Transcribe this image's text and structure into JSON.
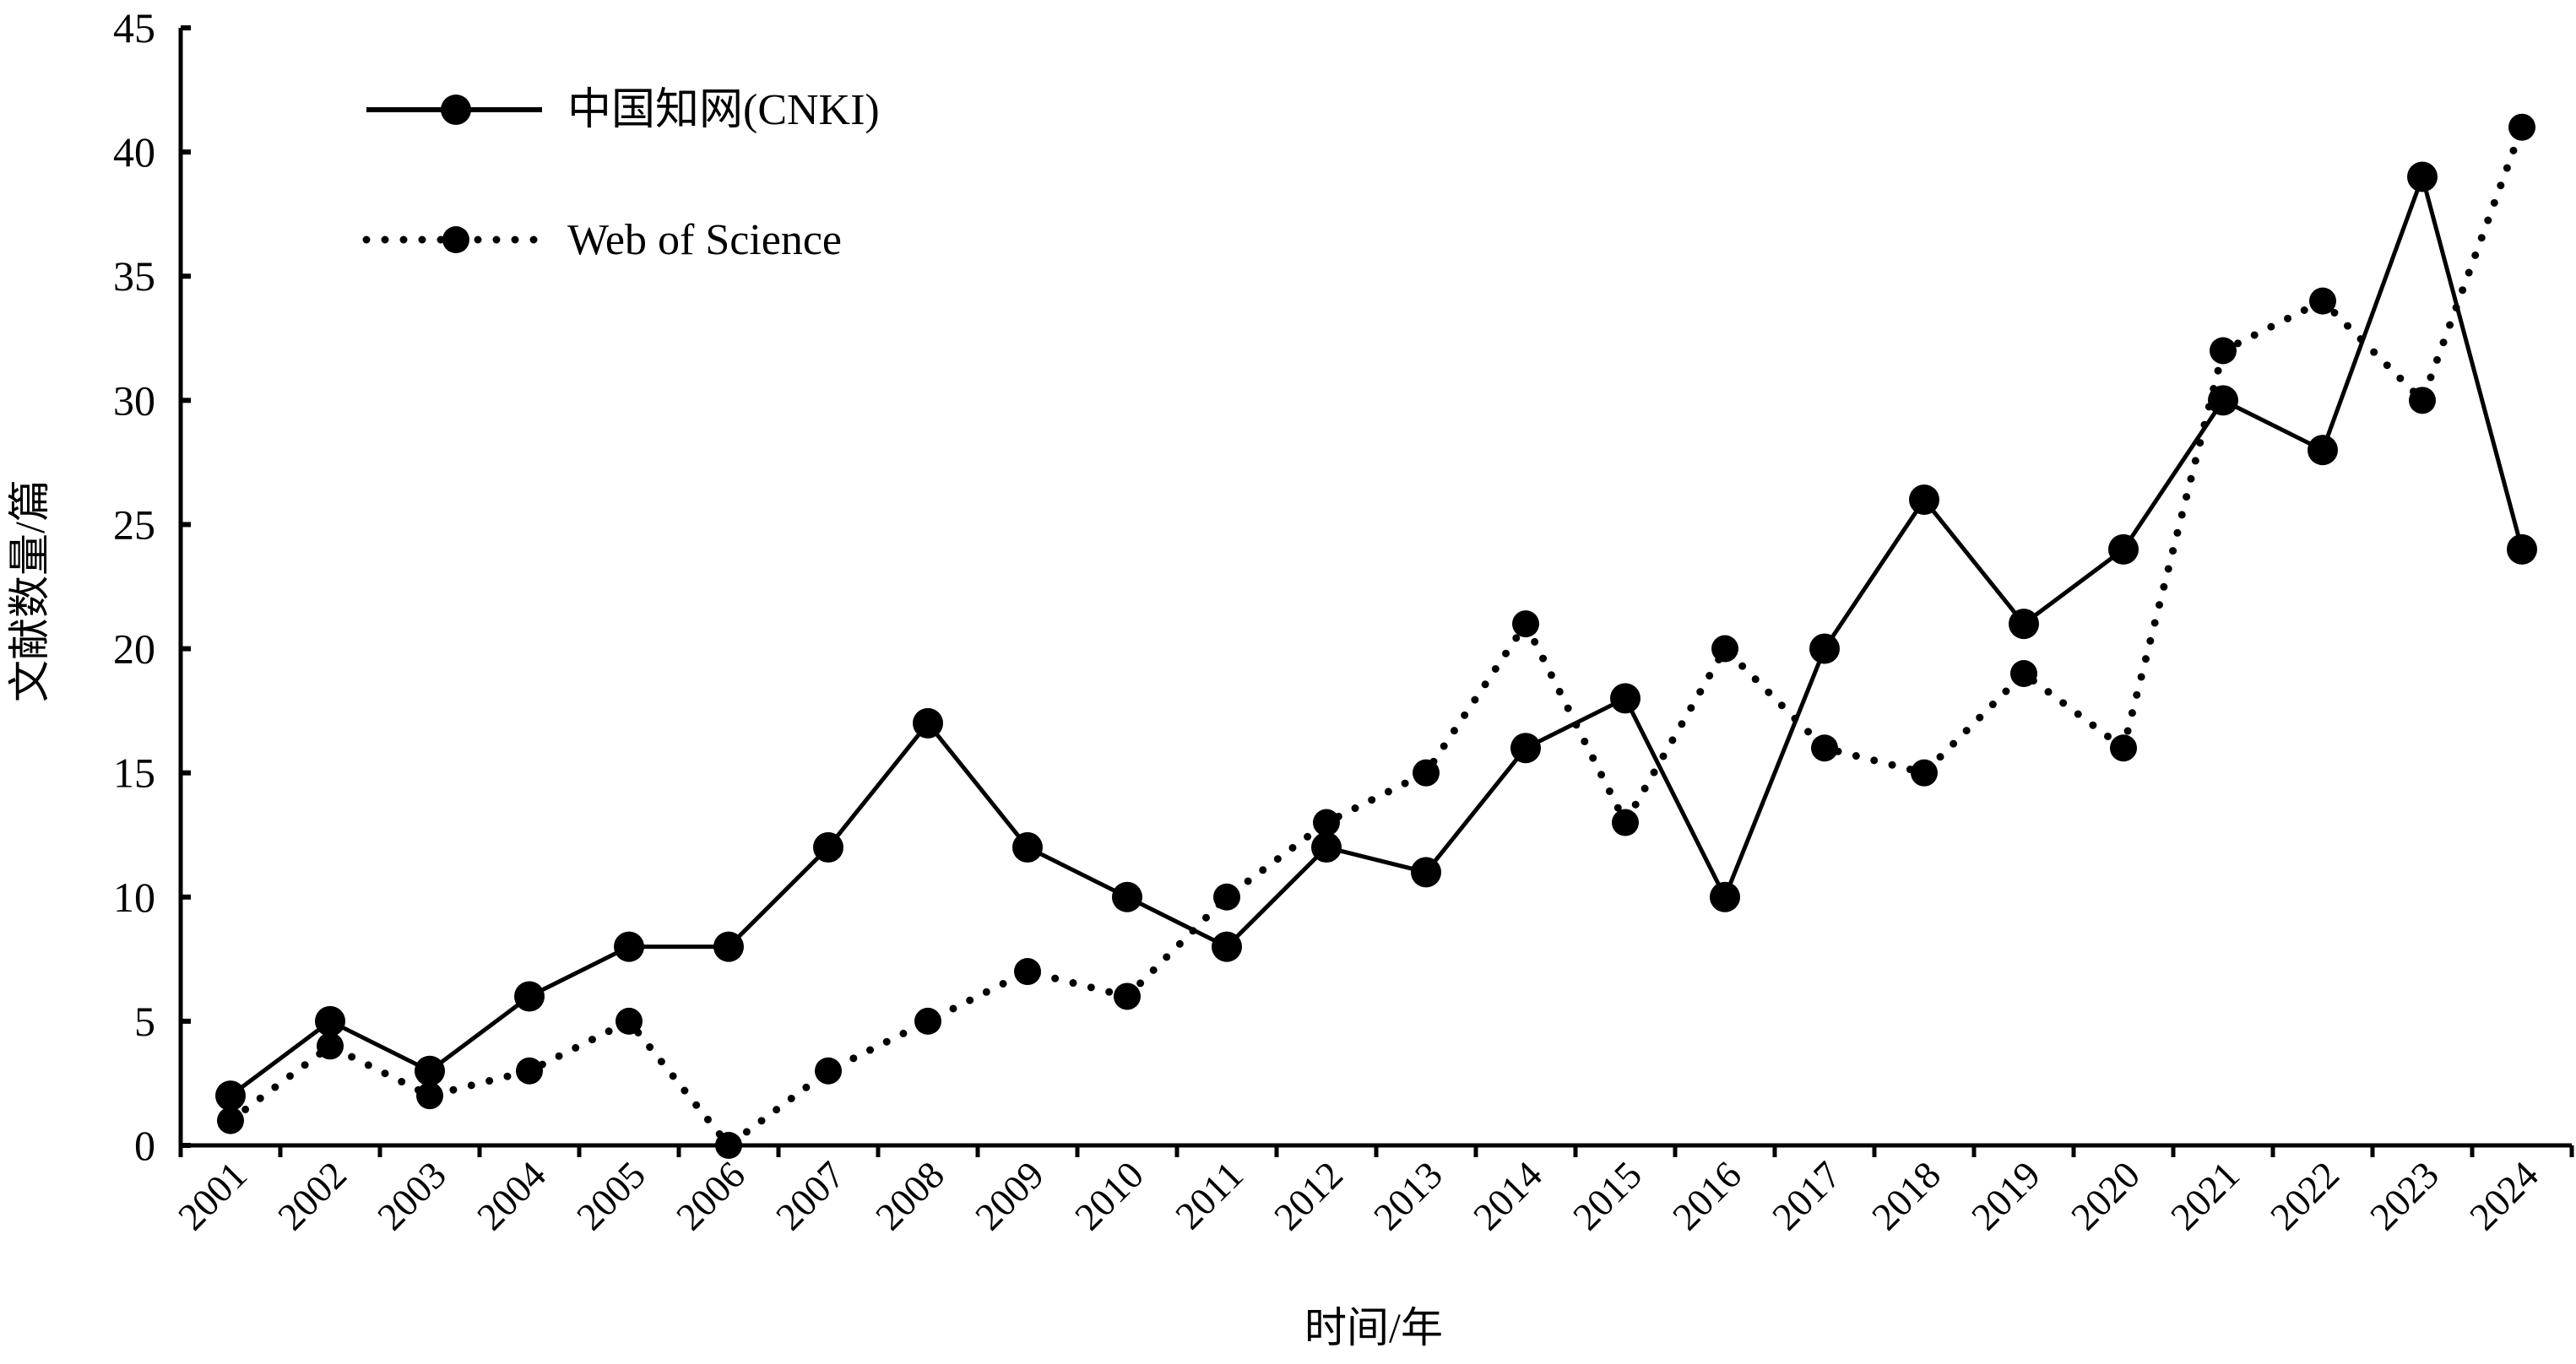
{
  "chart_data": {
    "type": "line",
    "title": "",
    "xlabel": "时间/年",
    "ylabel": "文献数量/篇",
    "ylim": [
      0,
      45
    ],
    "yticks": [
      0,
      5,
      10,
      15,
      20,
      25,
      30,
      35,
      40,
      45
    ],
    "grid": false,
    "legend_position": "top-left",
    "categories": [
      "2001",
      "2002",
      "2003",
      "2004",
      "2005",
      "2006",
      "2007",
      "2008",
      "2009",
      "2010",
      "2011",
      "2012",
      "2013",
      "2014",
      "2015",
      "2016",
      "2017",
      "2018",
      "2019",
      "2020",
      "2021",
      "2022",
      "2023",
      "2024"
    ],
    "series": [
      {
        "name": "中国知网(CNKI)",
        "style": "solid",
        "color": "#000000",
        "values": [
          2,
          5,
          3,
          6,
          8,
          8,
          12,
          17,
          12,
          10,
          8,
          12,
          11,
          16,
          18,
          10,
          20,
          26,
          21,
          24,
          30,
          28,
          39,
          24
        ]
      },
      {
        "name": "Web of Science",
        "style": "dotted",
        "color": "#000000",
        "values": [
          1,
          4,
          2,
          3,
          5,
          0,
          3,
          5,
          7,
          6,
          10,
          13,
          15,
          21,
          13,
          20,
          16,
          15,
          19,
          16,
          32,
          34,
          30,
          41
        ]
      }
    ]
  }
}
